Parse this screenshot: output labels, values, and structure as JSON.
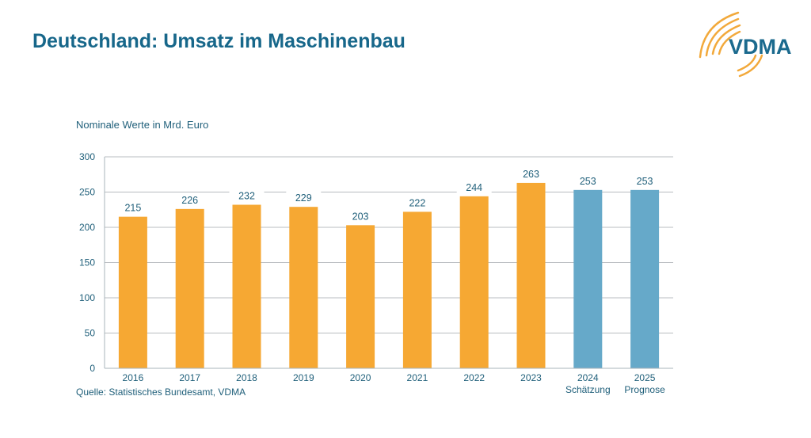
{
  "header": {
    "title": "Deutschland: Umsatz im Maschinenbau",
    "logo_text": "VDMA"
  },
  "source": "Quelle: Statistisches Bundesamt, VDMA",
  "colors": {
    "actual": "#f6a833",
    "forecast": "#66a9c9",
    "text": "#1f5f7a",
    "title": "#17678a"
  },
  "chart_data": {
    "type": "bar",
    "title": "",
    "subtitle": "Nominale Werte in Mrd. Euro",
    "xlabel": "",
    "ylabel": "",
    "ylim": [
      0,
      300
    ],
    "yticks": [
      0,
      50,
      100,
      150,
      200,
      250,
      300
    ],
    "grid": true,
    "categories": [
      "2016",
      "2017",
      "2018",
      "2019",
      "2020",
      "2021",
      "2022",
      "2023",
      "2024",
      "2025"
    ],
    "category_sublabels": [
      "",
      "",
      "",
      "",
      "",
      "",
      "",
      "",
      "Schätzung",
      "Prognose"
    ],
    "values": [
      215,
      226,
      232,
      229,
      203,
      222,
      244,
      263,
      253,
      253
    ],
    "bar_types": [
      "actual",
      "actual",
      "actual",
      "actual",
      "actual",
      "actual",
      "actual",
      "actual",
      "forecast",
      "forecast"
    ]
  }
}
